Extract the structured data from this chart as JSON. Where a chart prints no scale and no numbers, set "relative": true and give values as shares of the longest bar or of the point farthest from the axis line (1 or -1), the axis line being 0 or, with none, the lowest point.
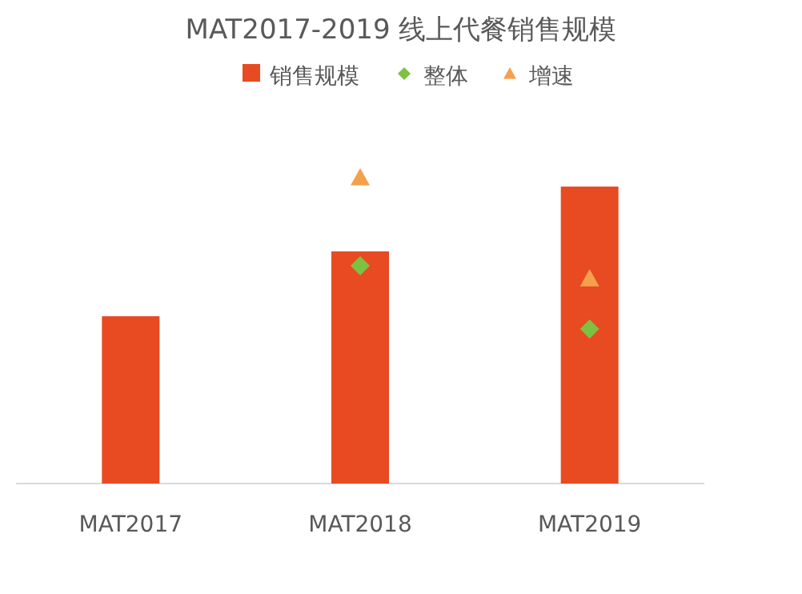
{
  "chart_data": {
    "type": "bar",
    "title": "MAT2017-2019 线上代餐销售规模",
    "categories": [
      "MAT2017",
      "MAT2018",
      "MAT2019"
    ],
    "relative": true,
    "legend": "top",
    "series": [
      {
        "name": "销售规模",
        "color": "#e84a22",
        "values": [
          0.547,
          0.759,
          0.971
        ]
      },
      {
        "name": "整体",
        "type": "scatter",
        "marker": "diamond",
        "color": "#7dc142",
        "values": [
          null,
          0.712,
          0.505
        ]
      },
      {
        "name": "增速",
        "type": "scatter",
        "marker": "triangle",
        "color": "#f4a04c",
        "values": [
          null,
          1,
          0.67
        ]
      }
    ]
  }
}
